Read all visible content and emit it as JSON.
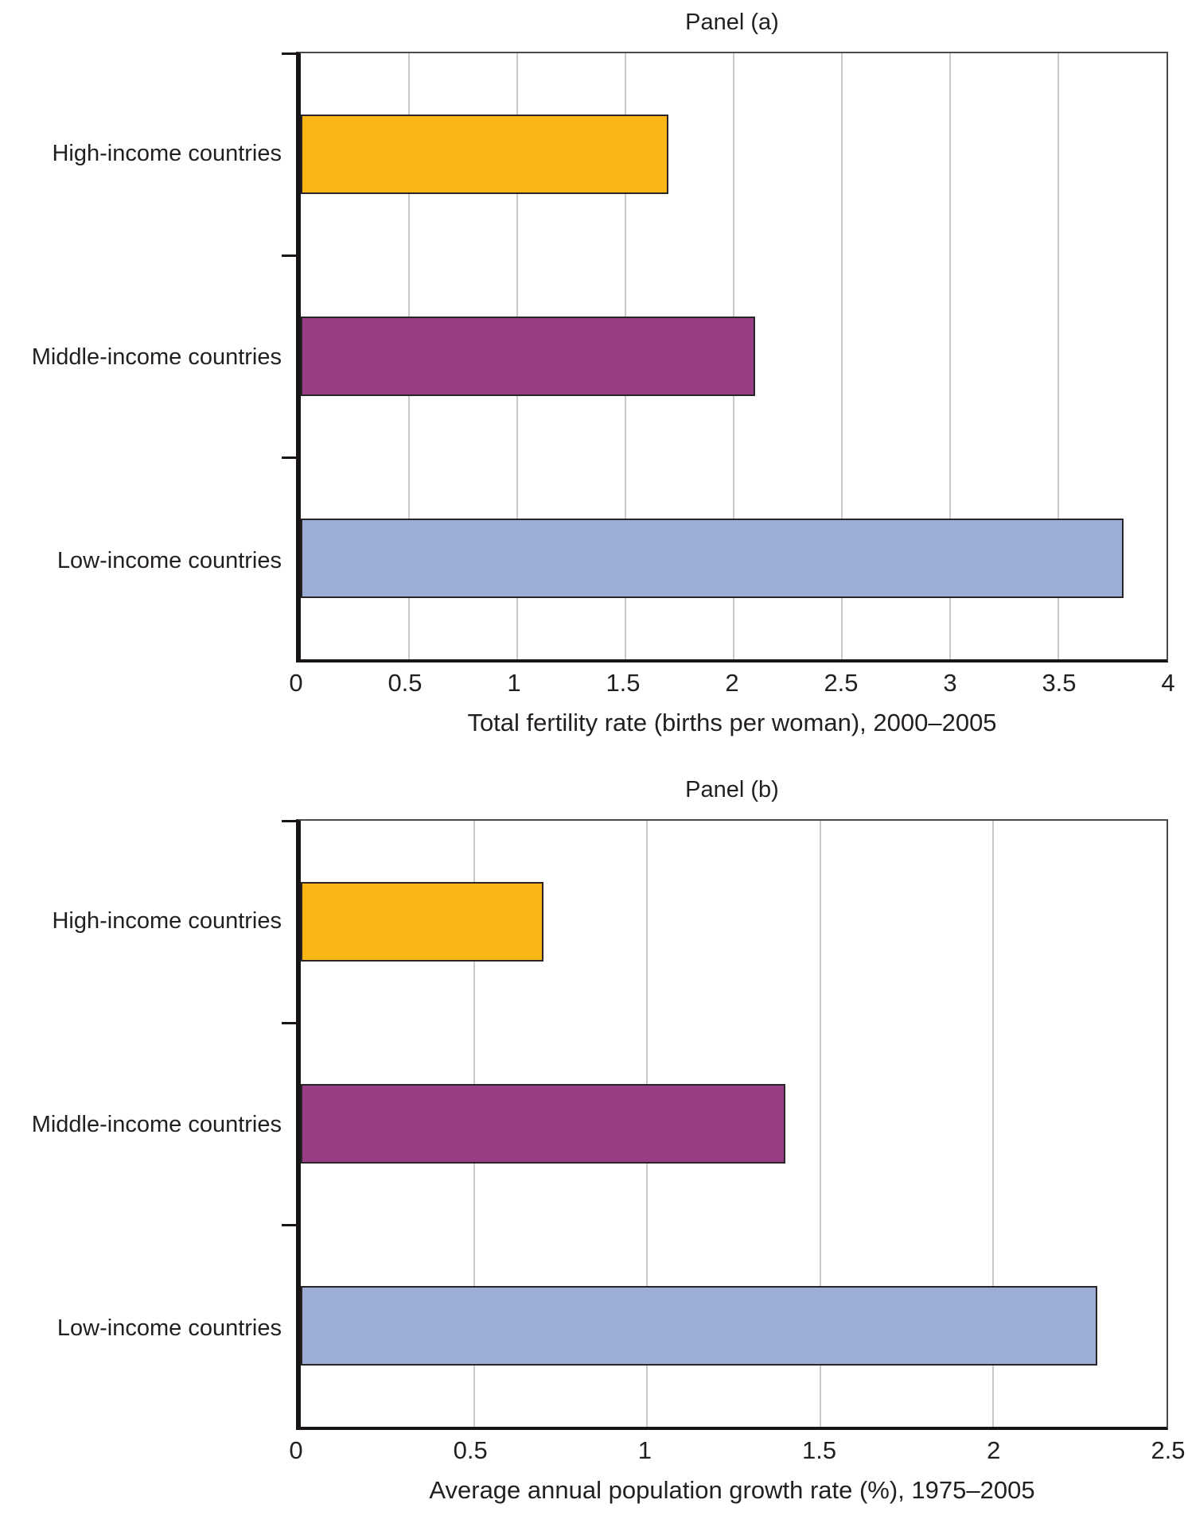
{
  "chart_data": [
    {
      "type": "bar",
      "orientation": "horizontal",
      "title": "Panel (a)",
      "categories": [
        "High-income countries",
        "Middle-income countries",
        "Low-income countries"
      ],
      "values": [
        1.7,
        2.1,
        3.8
      ],
      "colors": [
        "#f9b513",
        "#993d85",
        "#9caed6"
      ],
      "xlabel": "Total fertility rate (births per woman), 2000–2005",
      "xlim": [
        0,
        4
      ],
      "xticks": [
        0,
        0.5,
        1,
        1.5,
        2,
        2.5,
        3,
        3.5,
        4
      ],
      "grid": true,
      "legend": "none"
    },
    {
      "type": "bar",
      "orientation": "horizontal",
      "title": "Panel (b)",
      "categories": [
        "High-income countries",
        "Middle-income countries",
        "Low-income countries"
      ],
      "values": [
        0.7,
        1.4,
        2.3
      ],
      "colors": [
        "#f9b513",
        "#993d85",
        "#9caed6"
      ],
      "xlabel": "Average annual population growth rate (%), 1975–2005",
      "xlim": [
        0,
        2.5
      ],
      "xticks": [
        0,
        0.5,
        1,
        1.5,
        2,
        2.5
      ],
      "grid": true,
      "legend": "none"
    }
  ]
}
